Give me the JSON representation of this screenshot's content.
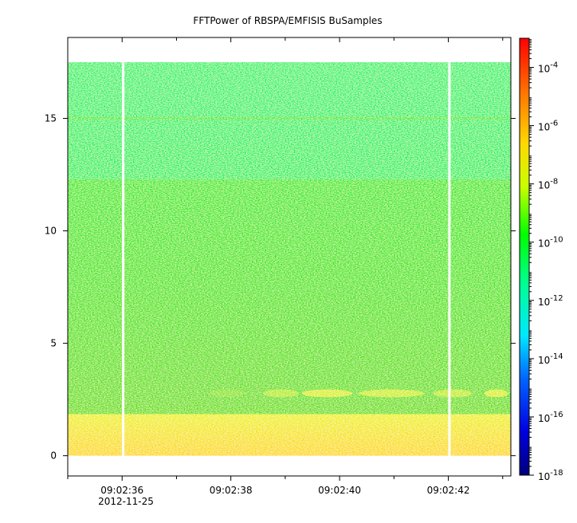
{
  "chart_data": {
    "type": "heatmap",
    "title": "FFTPower of RBSPA/EMFISIS  BuSamples",
    "x_ticks": [
      {
        "value": 36,
        "label": "09:02:36"
      },
      {
        "value": 38,
        "label": "09:02:38"
      },
      {
        "value": 40,
        "label": "09:02:40"
      },
      {
        "value": 42,
        "label": "09:02:42"
      }
    ],
    "x_date_label": "2012-11-25",
    "x_minor_ticks": [
      35,
      37,
      39,
      41,
      43
    ],
    "xlim": [
      35.0,
      43.15
    ],
    "y_ticks": [
      0,
      5,
      10,
      15
    ],
    "ylim": [
      -0.9,
      18.6
    ],
    "data_extent": {
      "x": [
        35.0,
        43.15
      ],
      "y": [
        0.0,
        17.5
      ]
    },
    "colorbar": {
      "scale": "log",
      "range": [
        1e-18,
        0.001
      ],
      "ticks": [
        {
          "base": "10",
          "exp": "-4",
          "value": 0.0001
        },
        {
          "base": "10",
          "exp": "-6",
          "value": 1e-06
        },
        {
          "base": "10",
          "exp": "-8",
          "value": 1e-08
        },
        {
          "base": "10",
          "exp": "-10",
          "value": 1e-10
        },
        {
          "base": "10",
          "exp": "-12",
          "value": 1e-12
        },
        {
          "base": "10",
          "exp": "-14",
          "value": 1e-14
        },
        {
          "base": "10",
          "exp": "-16",
          "value": 1e-16
        },
        {
          "base": "10",
          "exp": "-18",
          "value": 1e-18
        }
      ]
    },
    "gaps_x": [
      36.02,
      42.02
    ],
    "bands": [
      {
        "y": [
          0.0,
          1.85
        ],
        "approx_power_exp": -8.6
      },
      {
        "y": [
          1.85,
          12.3
        ],
        "approx_power_exp": -10.3
      },
      {
        "y": [
          12.3,
          17.5
        ],
        "approx_power_exp": -11.4
      },
      {
        "y": [
          14.95,
          15.05
        ],
        "approx_power_exp": -10.6
      }
    ],
    "features": [
      {
        "x": [
          37.6,
          43.1
        ],
        "y": [
          2.6,
          2.95
        ],
        "approx_power_exp": -9.0
      }
    ]
  }
}
